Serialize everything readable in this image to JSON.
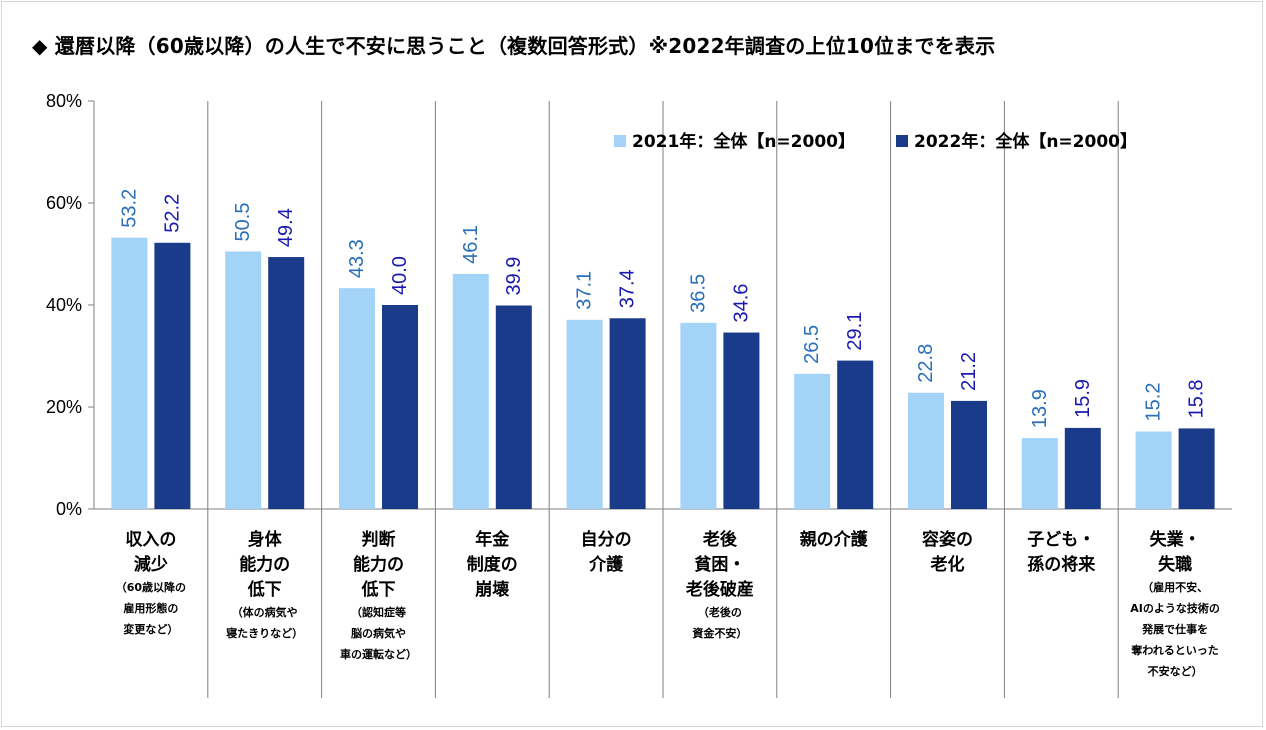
{
  "title": "◆ 還暦以降（60歳以降）の人生で不安に思うこと（複数回答形式）※2022年調査の上位10位までを表示",
  "colors": {
    "series2021": "#a3d3f7",
    "series2022": "#1a3a8a",
    "label2021": "#2a6fb8",
    "label2022": "#1a1ab0",
    "grid": "#7f7f7f"
  },
  "chart_data": {
    "type": "bar",
    "title": "◆ 還暦以降（60歳以降）の人生で不安に思うこと（複数回答形式）※2022年調査の上位10位までを表示",
    "xlabel": "",
    "ylabel": "",
    "ylim": [
      0,
      80
    ],
    "yticks": [
      "0%",
      "20%",
      "40%",
      "60%",
      "80%"
    ],
    "legend_position": "top-right",
    "grid": false,
    "categories": [
      {
        "main": [
          "収入の",
          "減少"
        ],
        "sub": [
          "（60歳以降の",
          "雇用形態の",
          "変更など）"
        ]
      },
      {
        "main": [
          "身体",
          "能力の",
          "低下"
        ],
        "sub": [
          "（体の病気や",
          "寝たきりなど）"
        ]
      },
      {
        "main": [
          "判断",
          "能力の",
          "低下"
        ],
        "sub": [
          "（認知症等",
          "脳の病気や",
          "車の運転など）"
        ]
      },
      {
        "main": [
          "年金",
          "制度の",
          "崩壊"
        ],
        "sub": []
      },
      {
        "main": [
          "自分の",
          "介護"
        ],
        "sub": []
      },
      {
        "main": [
          "老後",
          "貧困・",
          "老後破産"
        ],
        "sub": [
          "（老後の",
          "資金不安）"
        ]
      },
      {
        "main": [
          "親の介護"
        ],
        "sub": []
      },
      {
        "main": [
          "容姿の",
          "老化"
        ],
        "sub": []
      },
      {
        "main": [
          "子ども・",
          "孫の将来"
        ],
        "sub": []
      },
      {
        "main": [
          "失業・",
          "失職"
        ],
        "sub": [
          "（雇用不安、",
          "AIのような技術の",
          "発展で仕事を",
          "奪われるといった",
          "不安など）"
        ]
      }
    ],
    "series": [
      {
        "name": "2021年：全体【n=2000】",
        "values": [
          53.2,
          50.5,
          43.3,
          46.1,
          37.1,
          36.5,
          26.5,
          22.8,
          13.9,
          15.2
        ],
        "labels": [
          "53.2",
          "50.5",
          "43.3",
          "46.1",
          "37.1",
          "36.5",
          "26.5",
          "22.8",
          "13.9",
          "15.2"
        ]
      },
      {
        "name": "2022年：全体【n=2000】",
        "values": [
          52.2,
          49.4,
          40.0,
          39.9,
          37.4,
          34.6,
          29.1,
          21.2,
          15.9,
          15.8
        ],
        "labels": [
          "52.2",
          "49.4",
          "40.0",
          "39.9",
          "37.4",
          "34.6",
          "29.1",
          "21.2",
          "15.9",
          "15.8"
        ]
      }
    ]
  }
}
